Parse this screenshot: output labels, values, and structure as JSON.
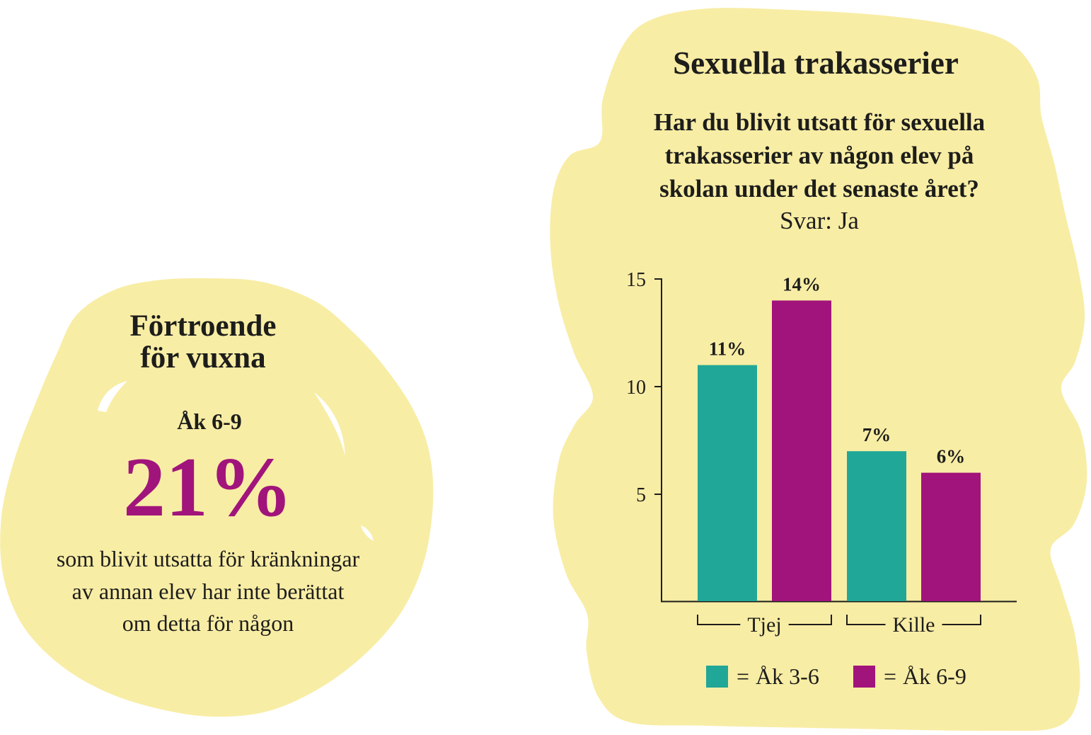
{
  "colors": {
    "blob": "#f8eda5",
    "text": "#1d1d1b",
    "highlight": "#a1147b"
  },
  "info_card": {
    "title_lines": [
      "Förtroende",
      "för vuxna"
    ],
    "grade": "Åk 6-9",
    "big_value": "21%",
    "body_lines": [
      "som blivit utsatta för kränkningar",
      "av annan elev har inte berättat",
      "om detta för någon"
    ]
  },
  "chart_data": {
    "type": "bar",
    "title": "Sexuella trakasserier",
    "subtitle_lines": [
      "Har du blivit utsatt för sexuella",
      "trakasserier av någon elev på",
      "skolan under det senaste året?"
    ],
    "answer": "Svar: Ja",
    "categories": [
      "Tjej",
      "Kille"
    ],
    "series": [
      {
        "name": "Åk 3-6",
        "values": [
          11,
          7
        ],
        "color": "#21a797"
      },
      {
        "name": "Åk 6-9",
        "values": [
          14,
          6
        ],
        "color": "#a1147b"
      }
    ],
    "value_suffix": "%",
    "ylim": [
      0,
      15
    ],
    "yticks": [
      5,
      10,
      15
    ],
    "xlabel": "",
    "ylabel": "",
    "legend_prefix": "=",
    "legend_position": "bottom",
    "grid": false
  }
}
